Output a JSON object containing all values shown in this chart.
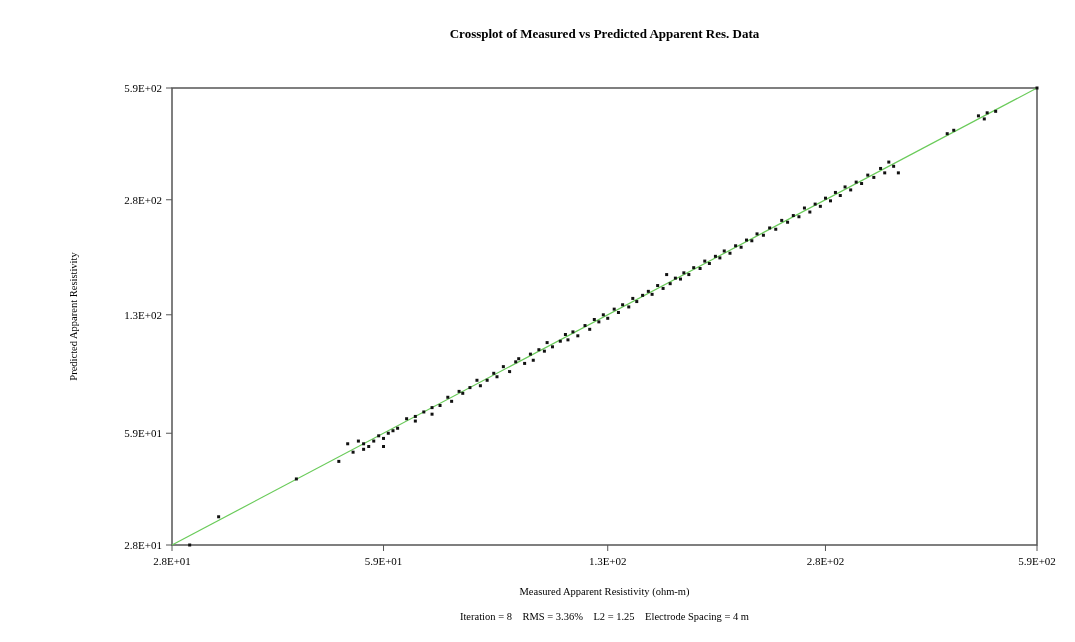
{
  "chart_data": {
    "type": "scatter",
    "title": "Crossplot of Measured vs Predicted Apparent Res. Data",
    "xlabel": "Measured Apparent Resistivity (ohm-m)",
    "ylabel": "Predicted Apparent Resistivity",
    "annotations": [
      "Iteration = 8    RMS = 3.36%    L2 = 1.25    Electrode Spacing = 4 m"
    ],
    "log": "xy",
    "grid": false,
    "marker": "square",
    "xlim": [
      28,
      590
    ],
    "ylim": [
      28,
      590
    ],
    "xticks": [
      {
        "value": 28,
        "label": "2.8E+01"
      },
      {
        "value": 59,
        "label": "5.9E+01"
      },
      {
        "value": 130,
        "label": "1.3E+02"
      },
      {
        "value": 280,
        "label": "2.8E+02"
      },
      {
        "value": 590,
        "label": "5.9E+02"
      }
    ],
    "yticks": [
      {
        "value": 28,
        "label": "2.8E+01"
      },
      {
        "value": 59,
        "label": "5.9E+01"
      },
      {
        "value": 130,
        "label": "1.3E+02"
      },
      {
        "value": 280,
        "label": "2.8E+02"
      },
      {
        "value": 590,
        "label": "5.9E+02"
      }
    ],
    "series": [
      {
        "type": "line",
        "marker": "none",
        "color": "#6acb5a",
        "x": [
          28,
          590
        ],
        "values": [
          28,
          590
        ]
      },
      {
        "color": "#111111",
        "x": [
          29.8,
          33,
          43.4,
          50.4,
          52,
          53,
          55,
          55,
          54,
          56,
          57,
          58,
          59,
          59,
          60,
          61,
          62,
          64,
          66,
          66,
          68,
          70,
          70,
          72,
          74,
          75,
          77,
          78,
          80,
          82,
          83,
          85,
          87,
          88,
          90,
          92,
          94,
          95,
          97,
          99,
          100,
          102,
          104,
          105,
          107,
          110,
          112,
          113,
          115,
          117,
          120,
          122,
          124,
          126,
          128,
          130,
          133,
          135,
          137,
          140,
          142,
          144,
          147,
          150,
          152,
          155,
          158,
          160,
          162,
          165,
          168,
          170,
          173,
          176,
          180,
          183,
          186,
          190,
          193,
          196,
          200,
          204,
          208,
          212,
          216,
          220,
          225,
          230,
          235,
          240,
          245,
          250,
          255,
          260,
          265,
          270,
          275,
          280,
          285,
          290,
          295,
          300,
          306,
          312,
          318,
          325,
          332,
          340,
          345,
          350,
          356,
          362,
          430,
          440,
          480,
          490,
          495,
          510,
          590
        ],
        "values": [
          28,
          33.8,
          43.5,
          48.9,
          55,
          52,
          53,
          55,
          56,
          54,
          56,
          58,
          57,
          54,
          59,
          60,
          61,
          65,
          66,
          64,
          68,
          70,
          67,
          71,
          75,
          73,
          78,
          77,
          80,
          84,
          81,
          84,
          88,
          86,
          92,
          89,
          95,
          97,
          94,
          100,
          96,
          103,
          102,
          108,
          105,
          109,
          114,
          110,
          116,
          113,
          121,
          118,
          126,
          124,
          130,
          127,
          135,
          132,
          139,
          137,
          145,
          142,
          148,
          152,
          149,
          158,
          155,
          170,
          160,
          166,
          165,
          172,
          170,
          178,
          177,
          186,
          183,
          192,
          190,
          199,
          196,
          206,
          204,
          214,
          213,
          223,
          221,
          232,
          230,
          244,
          241,
          252,
          250,
          265,
          258,
          272,
          268,
          283,
          278,
          294,
          288,
          305,
          299,
          315,
          312,
          330,
          325,
          345,
          335,
          360,
          350,
          335,
          435,
          445,
          490,
          480,
          500,
          505,
          590
        ]
      }
    ]
  }
}
